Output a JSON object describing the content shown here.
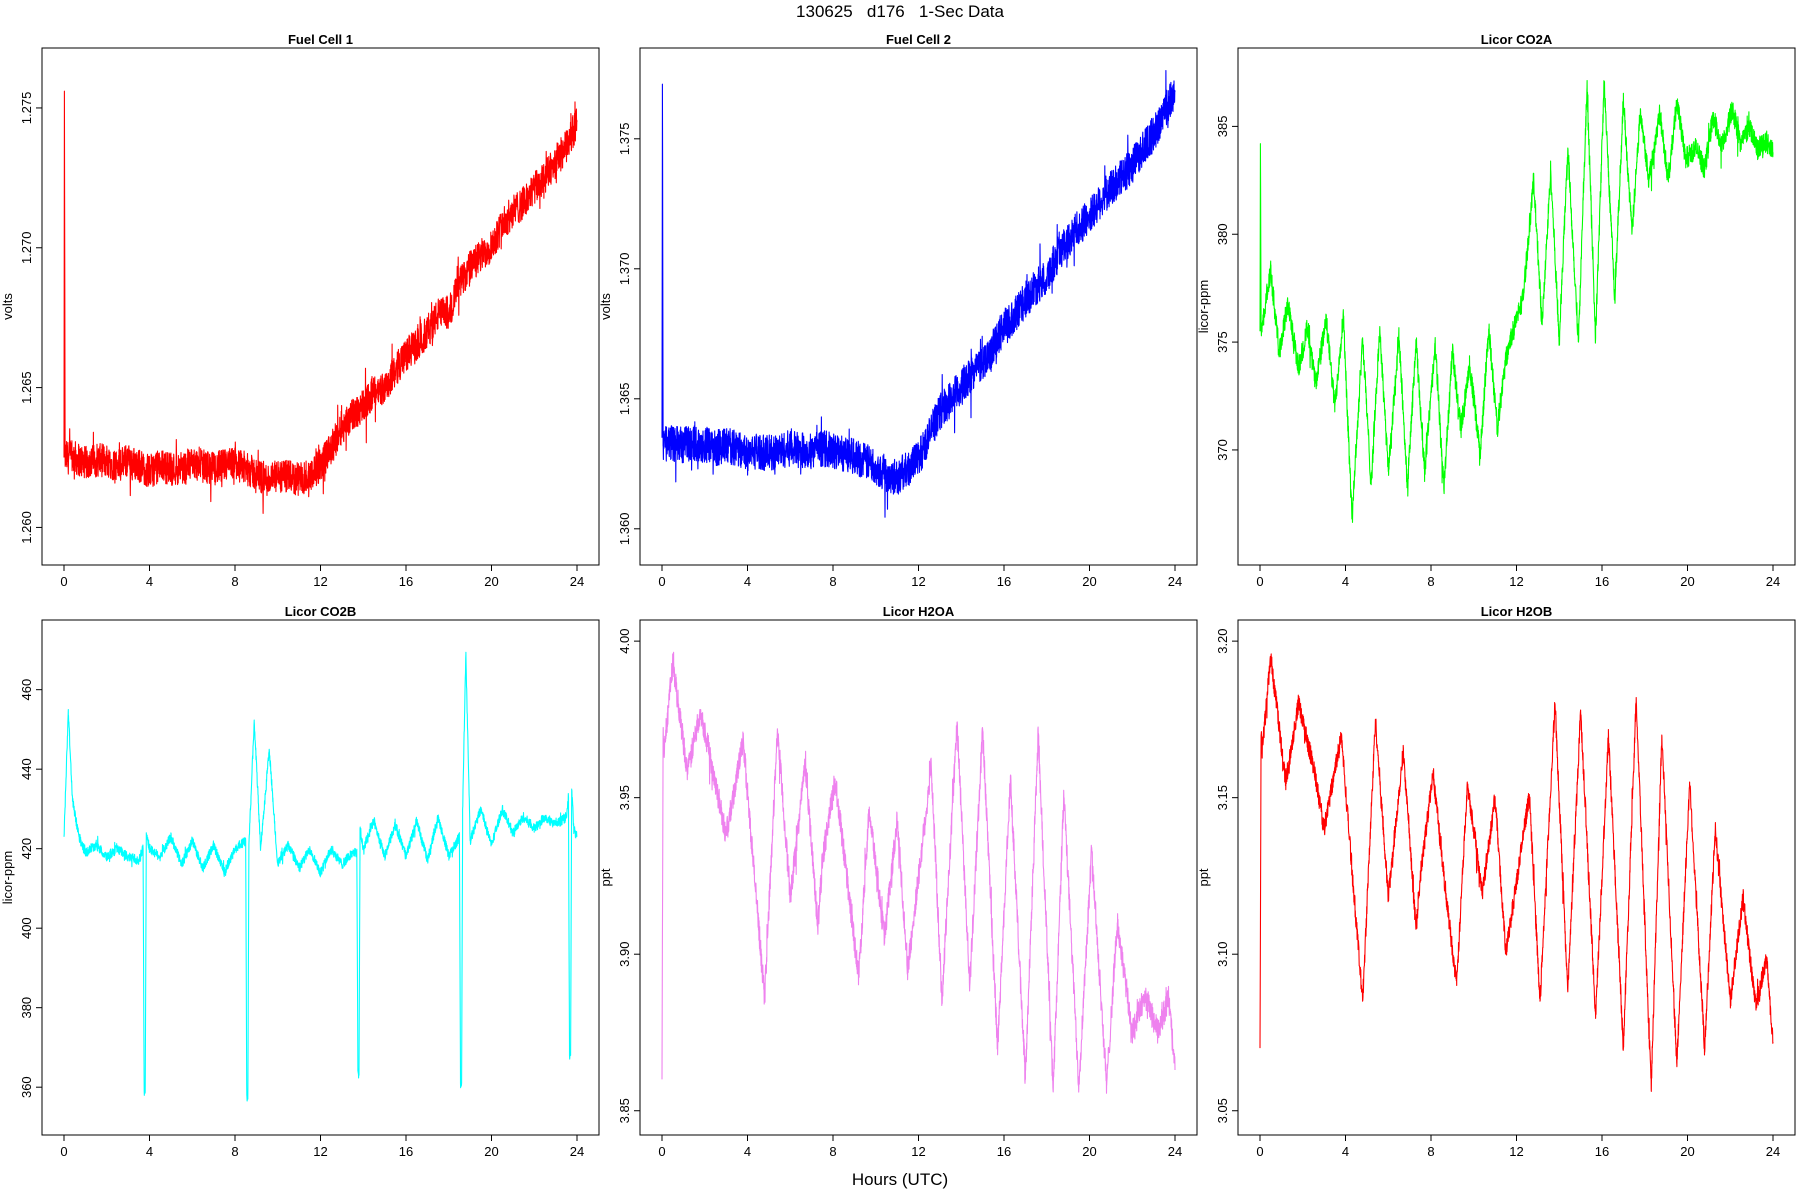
{
  "title": "130625   d176   1-Sec Data",
  "xlabel": "Hours (UTC)",
  "chart_data": [
    {
      "type": "line",
      "title": "Fuel Cell 1",
      "ylabel": "volts",
      "color": "#ff0000",
      "xlim": [
        0,
        24
      ],
      "ylim": [
        1.2593,
        1.2765
      ],
      "xticks": [
        0,
        4,
        8,
        12,
        16,
        20,
        24
      ],
      "yticks": [
        "1.260",
        "1.265",
        "1.270",
        "1.275"
      ],
      "x": [
        0,
        0.02,
        0.05,
        0.5,
        1,
        1.5,
        2,
        2.5,
        3,
        3.5,
        4,
        4.5,
        5,
        5.5,
        6,
        6.5,
        7,
        7.5,
        8,
        8.5,
        9,
        9.5,
        10,
        10.5,
        11,
        11.5,
        12,
        12.5,
        13,
        13.5,
        14,
        14.5,
        15,
        15.5,
        16,
        16.5,
        17,
        17.5,
        18,
        18.5,
        19,
        19.5,
        20,
        20.5,
        21,
        21.5,
        22,
        22.5,
        23,
        23.5,
        24
      ],
      "y": [
        1.2625,
        1.2756,
        1.2625,
        1.2625,
        1.2623,
        1.2624,
        1.2624,
        1.2622,
        1.2624,
        1.2622,
        1.262,
        1.2622,
        1.2621,
        1.2621,
        1.2623,
        1.2622,
        1.2621,
        1.2622,
        1.2623,
        1.2621,
        1.2619,
        1.2617,
        1.2618,
        1.2618,
        1.2617,
        1.2619,
        1.2622,
        1.2628,
        1.2636,
        1.264,
        1.2644,
        1.2648,
        1.265,
        1.2656,
        1.2662,
        1.2665,
        1.267,
        1.2676,
        1.2677,
        1.2687,
        1.2693,
        1.2697,
        1.2701,
        1.2708,
        1.2713,
        1.2716,
        1.2721,
        1.2725,
        1.2731,
        1.2736,
        1.2745
      ],
      "noise": 0.0006
    },
    {
      "type": "line",
      "title": "Fuel Cell 2",
      "ylabel": "volts",
      "color": "#0000ff",
      "xlim": [
        0,
        24
      ],
      "ylim": [
        1.3593,
        1.3778
      ],
      "xticks": [
        0,
        4,
        8,
        12,
        16,
        20,
        24
      ],
      "yticks": [
        "1.360",
        "1.365",
        "1.370",
        "1.375"
      ],
      "x": [
        0,
        0.02,
        0.05,
        0.5,
        1,
        1.5,
        2,
        2.5,
        3,
        3.5,
        4,
        4.5,
        5,
        5.5,
        6,
        6.5,
        7,
        7.5,
        8,
        8.5,
        9,
        9.5,
        10,
        10.5,
        11,
        11.5,
        12,
        12.5,
        13,
        13.5,
        14,
        14.5,
        15,
        15.5,
        16,
        16.5,
        17,
        17.5,
        18,
        18.5,
        19,
        19.5,
        20,
        20.5,
        21,
        21.5,
        22,
        22.5,
        23,
        23.5,
        24
      ],
      "y": [
        1.3635,
        1.3771,
        1.3632,
        1.3633,
        1.3632,
        1.3633,
        1.3632,
        1.3631,
        1.3632,
        1.3631,
        1.3629,
        1.363,
        1.3629,
        1.363,
        1.3631,
        1.363,
        1.363,
        1.3631,
        1.363,
        1.3629,
        1.3628,
        1.3626,
        1.3624,
        1.3621,
        1.362,
        1.3623,
        1.3627,
        1.3636,
        1.3645,
        1.365,
        1.3654,
        1.366,
        1.3664,
        1.367,
        1.3678,
        1.3682,
        1.3688,
        1.3693,
        1.3697,
        1.3705,
        1.3711,
        1.3716,
        1.372,
        1.3726,
        1.3731,
        1.3735,
        1.374,
        1.3746,
        1.3752,
        1.376,
        1.3768
      ],
      "noise": 0.0007
    },
    {
      "type": "line",
      "title": "Licor CO2A",
      "ylabel": "licor-ppm",
      "color": "#00ff00",
      "xlim": [
        0,
        24
      ],
      "ylim": [
        365.5,
        387.8
      ],
      "xticks": [
        0,
        4,
        8,
        12,
        16,
        20,
        24
      ],
      "yticks": [
        "370",
        "375",
        "380",
        "385"
      ],
      "x": [
        0,
        0.02,
        0.05,
        0.5,
        0.9,
        1.3,
        1.8,
        2.2,
        2.6,
        3.1,
        3.5,
        3.9,
        4.3,
        4.8,
        5.2,
        5.6,
        6.0,
        6.5,
        6.9,
        7.3,
        7.7,
        8.2,
        8.6,
        9.0,
        9.4,
        9.8,
        10.3,
        10.7,
        11.1,
        11.5,
        11.9,
        12.3,
        12.8,
        13.2,
        13.6,
        14.0,
        14.4,
        14.9,
        15.3,
        15.7,
        16.1,
        16.6,
        17.0,
        17.4,
        17.8,
        18.2,
        18.7,
        19.1,
        19.5,
        19.9,
        20.4,
        20.8,
        21.2,
        21.6,
        22.1,
        22.5,
        22.9,
        23.3,
        23.7,
        24
      ],
      "y": [
        375.5,
        384.2,
        375.5,
        378.3,
        374.5,
        376.8,
        373.8,
        375.6,
        373.1,
        376.0,
        372.0,
        376.3,
        366.8,
        375.2,
        368.4,
        375.6,
        369.0,
        375.2,
        368.3,
        375.0,
        369.0,
        374.8,
        368.2,
        374.5,
        371.0,
        374.0,
        369.8,
        375.6,
        371.0,
        374.2,
        375.8,
        377.0,
        382.5,
        375.8,
        383.0,
        375.0,
        384.0,
        375.0,
        386.8,
        375.2,
        387.0,
        377.0,
        386.3,
        380.0,
        385.8,
        382.5,
        385.7,
        382.5,
        386.2,
        383.5,
        384.0,
        383.0,
        385.5,
        384.0,
        385.8,
        384.2,
        385.0,
        384.0,
        384.3,
        383.8
      ],
      "noise": 0.5
    },
    {
      "type": "line",
      "title": "Licor CO2B",
      "ylabel": "licor-ppm",
      "color": "#00ffff",
      "xlim": [
        0,
        24
      ],
      "ylim": [
        352.5,
        473
      ],
      "xticks": [
        0,
        4,
        8,
        12,
        16,
        20,
        24
      ],
      "yticks": [
        "360",
        "380",
        "400",
        "420",
        "440",
        "460"
      ],
      "x": [
        0,
        0.2,
        0.4,
        0.7,
        1.0,
        1.5,
        2.0,
        2.5,
        3.0,
        3.5,
        3.7,
        3.75,
        3.8,
        3.85,
        4.0,
        4.5,
        5.0,
        5.5,
        6.0,
        6.5,
        7.0,
        7.5,
        8.0,
        8.5,
        8.55,
        8.6,
        8.65,
        8.9,
        9.2,
        9.6,
        10.0,
        10.5,
        11.0,
        11.5,
        12.0,
        12.5,
        13.0,
        13.5,
        13.7,
        13.75,
        13.8,
        13.85,
        14.0,
        14.5,
        15.0,
        15.5,
        16.0,
        16.5,
        17.0,
        17.5,
        18.0,
        18.5,
        18.55,
        18.6,
        18.65,
        18.8,
        19.0,
        19.5,
        20.0,
        20.5,
        21.0,
        21.5,
        22.0,
        22.5,
        23.0,
        23.5,
        23.6,
        23.65,
        23.7,
        23.75,
        23.85,
        24
      ],
      "y": [
        423,
        455,
        432,
        423,
        419,
        421,
        418,
        420,
        418,
        417,
        420,
        359,
        359,
        424,
        420,
        418,
        423,
        416,
        422,
        415,
        421,
        414,
        420,
        422,
        358,
        357,
        421,
        452,
        420,
        445,
        416,
        421,
        415,
        420,
        414,
        420,
        416,
        419,
        419,
        364,
        363,
        425,
        420,
        427,
        418,
        426,
        418,
        427,
        417,
        428,
        418,
        423,
        361,
        361,
        430,
        469,
        422,
        430,
        421,
        430,
        424,
        428,
        425,
        428,
        426,
        428,
        433,
        368,
        368,
        435,
        425,
        423
      ],
      "noise": 1.2
    },
    {
      "type": "line",
      "title": "Licor H2OA",
      "ylabel": "ppt",
      "color": "#ee82ee",
      "xlim": [
        0,
        24
      ],
      "ylim": [
        3.848,
        4.001
      ],
      "xticks": [
        0,
        4,
        8,
        12,
        16,
        20,
        24
      ],
      "yticks": [
        "3.85",
        "3.90",
        "3.95",
        "4.00"
      ],
      "x": [
        0,
        0.05,
        0.1,
        0.5,
        1.2,
        1.8,
        2.5,
        3.0,
        3.8,
        4.8,
        5.4,
        6.0,
        6.7,
        7.3,
        7.5,
        8.1,
        9.2,
        9.7,
        10.4,
        11.0,
        11.5,
        12.6,
        13.1,
        13.8,
        14.4,
        15.0,
        15.7,
        16.3,
        17.0,
        17.6,
        18.3,
        18.8,
        19.5,
        20.1,
        20.8,
        21.3,
        22.0,
        22.6,
        23.2,
        23.7,
        24
      ],
      "y": [
        3.86,
        3.97,
        3.965,
        3.993,
        3.958,
        3.978,
        3.955,
        3.938,
        3.968,
        3.886,
        3.972,
        3.918,
        3.961,
        3.909,
        3.93,
        3.956,
        3.893,
        3.947,
        3.905,
        3.943,
        3.895,
        3.96,
        3.885,
        3.974,
        3.89,
        3.972,
        3.87,
        3.956,
        3.86,
        3.971,
        3.856,
        3.951,
        3.858,
        3.933,
        3.858,
        3.91,
        3.875,
        3.887,
        3.875,
        3.886,
        3.863
      ],
      "noise": 0.004
    },
    {
      "type": "line",
      "title": "Licor H2OB",
      "ylabel": "ppt",
      "color": "#ff0000",
      "xlim": [
        0,
        24
      ],
      "ylim": [
        3.048,
        3.201
      ],
      "xticks": [
        0,
        4,
        8,
        12,
        16,
        20,
        24
      ],
      "yticks": [
        "3.05",
        "3.10",
        "3.15",
        "3.20"
      ],
      "x": [
        0,
        0.05,
        0.1,
        0.5,
        1.2,
        1.8,
        2.5,
        3.0,
        3.8,
        4.8,
        5.4,
        6.0,
        6.7,
        7.3,
        7.5,
        8.1,
        8.6,
        9.2,
        9.7,
        10.4,
        11.0,
        11.5,
        12.6,
        13.1,
        13.8,
        14.4,
        15.0,
        15.7,
        16.3,
        17.0,
        17.6,
        18.3,
        18.8,
        19.5,
        20.1,
        20.8,
        21.3,
        22.0,
        22.6,
        23.2,
        23.7,
        24
      ],
      "y": [
        3.07,
        3.17,
        3.165,
        3.195,
        3.155,
        3.18,
        3.16,
        3.14,
        3.17,
        3.085,
        3.175,
        3.118,
        3.165,
        3.108,
        3.125,
        3.158,
        3.125,
        3.09,
        3.155,
        3.12,
        3.15,
        3.1,
        3.151,
        3.085,
        3.18,
        3.088,
        3.178,
        3.08,
        3.17,
        3.07,
        3.182,
        3.057,
        3.17,
        3.065,
        3.155,
        3.07,
        3.14,
        3.085,
        3.118,
        3.083,
        3.099,
        3.072
      ],
      "noise": 0.003
    }
  ]
}
